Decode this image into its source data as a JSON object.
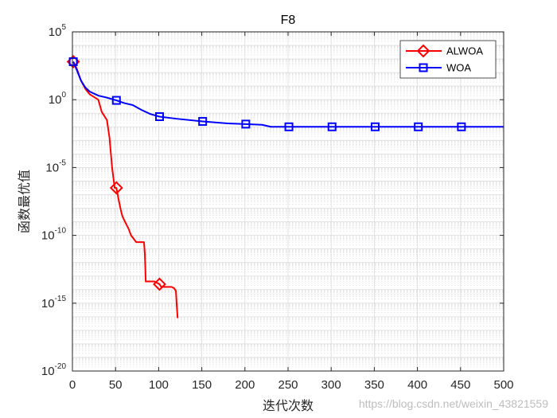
{
  "chart_data": {
    "type": "line",
    "title": "F8",
    "xlabel": "迭代次数",
    "ylabel": "函数最优值",
    "xlim": [
      0,
      500
    ],
    "ylim_log10": [
      -20,
      5
    ],
    "y_scale": "log",
    "grid": true,
    "minor_grid": true,
    "legend_position": "top-right",
    "x_ticks": [
      0,
      50,
      100,
      150,
      200,
      250,
      300,
      350,
      400,
      450,
      500
    ],
    "y_tick_exponents": [
      -20,
      -15,
      -10,
      -5,
      0,
      5
    ],
    "series": [
      {
        "name": "ALWOA",
        "color": "#ff0000",
        "marker": "diamond",
        "marker_x": [
          1,
          51,
          101
        ],
        "points_log10": [
          [
            1,
            2.8
          ],
          [
            2,
            2.7
          ],
          [
            5,
            2.3
          ],
          [
            10,
            1.4
          ],
          [
            15,
            0.8
          ],
          [
            20,
            0.4
          ],
          [
            25,
            0.2
          ],
          [
            30,
            0.0
          ],
          [
            34,
            -0.9
          ],
          [
            36,
            -1.1
          ],
          [
            40,
            -1.5
          ],
          [
            43,
            -2.8
          ],
          [
            46,
            -5.0
          ],
          [
            49,
            -6.5
          ],
          [
            51,
            -6.5
          ],
          [
            54,
            -7.5
          ],
          [
            56,
            -8.1
          ],
          [
            58,
            -8.6
          ],
          [
            61,
            -9.0
          ],
          [
            65,
            -9.5
          ],
          [
            68,
            -10.0
          ],
          [
            74,
            -10.5
          ],
          [
            75,
            -10.5
          ],
          [
            76,
            -10.5
          ],
          [
            83,
            -10.5
          ],
          [
            84,
            -11.4
          ],
          [
            85,
            -13.4
          ],
          [
            95,
            -13.4
          ],
          [
            101,
            -13.6
          ],
          [
            103,
            -13.8
          ],
          [
            108,
            -13.8
          ],
          [
            115,
            -13.8
          ],
          [
            118,
            -13.9
          ],
          [
            120,
            -14.1
          ],
          [
            121,
            -15.2
          ],
          [
            122,
            -16.1
          ]
        ]
      },
      {
        "name": "WOA",
        "color": "#0000ff",
        "marker": "square",
        "marker_x": [
          1,
          51,
          101,
          151,
          201,
          251,
          301,
          351,
          401,
          451
        ],
        "points_log10": [
          [
            1,
            2.8
          ],
          [
            5,
            2.2
          ],
          [
            10,
            1.4
          ],
          [
            15,
            0.9
          ],
          [
            20,
            0.6
          ],
          [
            30,
            0.3
          ],
          [
            40,
            0.15
          ],
          [
            51,
            -0.05
          ],
          [
            60,
            -0.25
          ],
          [
            70,
            -0.4
          ],
          [
            80,
            -0.75
          ],
          [
            90,
            -1.05
          ],
          [
            101,
            -1.25
          ],
          [
            120,
            -1.4
          ],
          [
            151,
            -1.6
          ],
          [
            180,
            -1.75
          ],
          [
            201,
            -1.8
          ],
          [
            220,
            -1.85
          ],
          [
            230,
            -2.0
          ],
          [
            251,
            -2.0
          ],
          [
            300,
            -2.0
          ],
          [
            350,
            -2.0
          ],
          [
            400,
            -2.0
          ],
          [
            450,
            -2.0
          ],
          [
            500,
            -2.0
          ]
        ]
      }
    ]
  },
  "watermark": "https://blog.csdn.net/weixin_43821559"
}
